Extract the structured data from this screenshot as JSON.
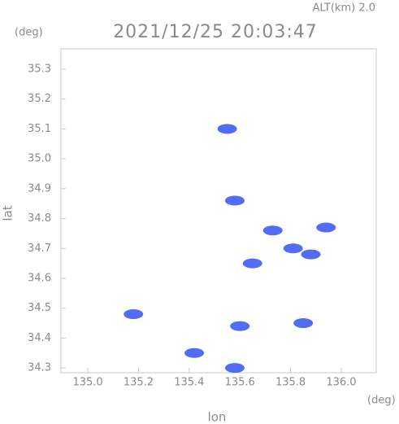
{
  "chart_data": {
    "type": "scatter",
    "title": "2021/12/25 20:03:47",
    "subtitle": "ALT(km)  2.0",
    "x_label": "lon",
    "y_label": "lat",
    "x_unit": "(deg)",
    "y_unit": "(deg)",
    "color": "#3f5cf5",
    "x": [
      135.55,
      135.58,
      135.94,
      135.73,
      135.81,
      135.65,
      135.18,
      135.6,
      135.85,
      135.42,
      135.58,
      135.88
    ],
    "values": [
      35.1,
      34.86,
      34.77,
      34.76,
      34.7,
      34.65,
      34.48,
      34.44,
      34.45,
      34.35,
      34.3,
      34.68
    ],
    "xlim": [
      134.894,
      136.138
    ],
    "ylim": [
      34.284,
      35.368
    ],
    "xticks": [
      {
        "value": 135,
        "label": "135.0"
      },
      135.2,
      135.4,
      135.6,
      135.8,
      {
        "value": 136,
        "label": "136.0"
      }
    ],
    "yticks": [
      34.3,
      34.4,
      34.5,
      34.6,
      34.7,
      34.8,
      34.9,
      {
        "value": 35,
        "label": "35.0"
      },
      35.1,
      35.2,
      35.3
    ]
  }
}
